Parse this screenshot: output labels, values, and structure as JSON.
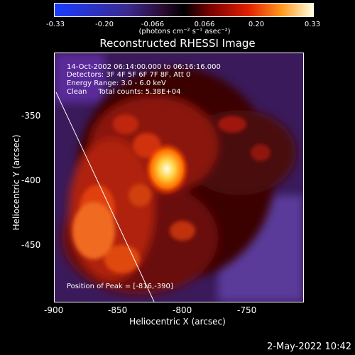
{
  "colorbar": {
    "ticks": [
      "-0.33",
      "-0.20",
      "-0.066",
      "0.066",
      "0.20",
      "0.33"
    ],
    "unit": "(photons cm⁻² s⁻¹ asec⁻²)",
    "range": [
      -0.33,
      0.33
    ]
  },
  "title": "Reconstructed RHESSI Image",
  "annotations": {
    "time": "14-Oct-2002 06:14:00.000 to 06:16:16.000",
    "detectors": "Detectors: 3F 4F 5F 6F 7F 8F, Att 0",
    "energy": "Energy Range: 3.0 - 6.0 keV",
    "clean": "Clean     Total counts: 5.38E+04",
    "peak": "Position of Peak = [-816,-390]"
  },
  "axes": {
    "xlabel": "Heliocentric X (arcsec)",
    "ylabel": "Heliocentric Y (arcsec)",
    "xticks": [
      "-900",
      "-850",
      "-800",
      "-750"
    ],
    "yticks": [
      "-350",
      "-400",
      "-450"
    ],
    "xlim": [
      -905,
      -805
    ],
    "ylim": [
      -493,
      -323
    ]
  },
  "timestamp": "2-May-2022 10:42"
}
